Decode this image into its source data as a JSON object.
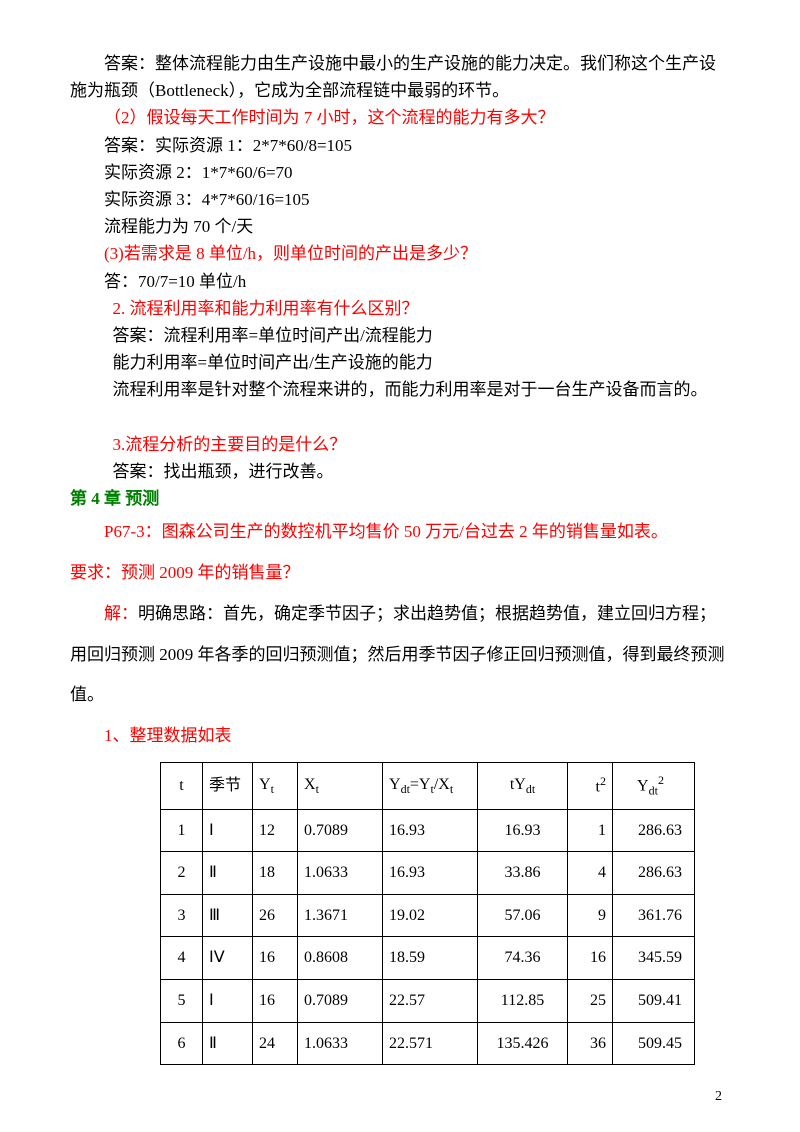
{
  "paragraphs": {
    "p1": "答案：整体流程能力由生产设施中最小的生产设施的能力决定。我们称这个生产设施为瓶颈（Bottleneck），它成为全部流程链中最弱的环节。",
    "p2": "（2）假设每天工作时间为 7 小时，这个流程的能力有多大？",
    "p3": "答案：实际资源 1：2*7*60/8=105",
    "p4": "实际资源 2：1*7*60/6=70",
    "p5": "实际资源 3：4*7*60/16=105",
    "p6": "流程能力为 70 个/天",
    "p7": "(3)若需求是 8 单位/h，则单位时间的产出是多少？",
    "p8": "答：70/7=10 单位/h",
    "p9": "2. 流程利用率和能力利用率有什么区别？",
    "p10": "答案：流程利用率=单位时间产出/流程能力",
    "p11": "能力利用率=单位时间产出/生产设施的能力",
    "p12": "流程利用率是针对整个流程来讲的，而能力利用率是对于一台生产设备而言的。",
    "p13": "3.流程分析的主要目的是什么？",
    "p14": "答案：找出瓶颈，进行改善。",
    "chapter": "第 4 章 预测",
    "p15": "P67-3：图森公司生产的数控机平均售价 50 万元/台过去 2 年的销售量如表。",
    "p16": "要求：预测 2009 年的销售量？",
    "p17a": "解：",
    "p17b": "明确思路：首先，确定季节因子；求出趋势值；根据趋势值，建立回归方程；用回归预测 2009 年各季的回归预测值；然后用季节因子修正回归预测值，得到最终预测值。",
    "p18": "1、整理数据如表"
  },
  "table": {
    "headers": {
      "t": "t",
      "season": "季节",
      "yt_label": "Y",
      "yt_sub": "t",
      "xt_label": "X",
      "xt_sub": "t",
      "ydt_label": "Y",
      "ydt_sub": "dt",
      "ydt_mid": "=Y",
      "ydt_sub2": "t",
      "ydt_slash": "/X",
      "ydt_sub3": "t",
      "tydt_label": "tY",
      "tydt_sub": "dt",
      "t2_label": "t",
      "t2_sup": "2",
      "ydt2_label": "Y",
      "ydt2_sub": "dt",
      "ydt2_sup": "2"
    },
    "rows": [
      {
        "t": "1",
        "season": "Ⅰ",
        "yt": "12",
        "xt": "0.7089",
        "ydt": "16.93",
        "tydt": "16.93",
        "t2": "1",
        "ydt2": "286.63"
      },
      {
        "t": "2",
        "season": "Ⅱ",
        "yt": "18",
        "xt": "1.0633",
        "ydt": "16.93",
        "tydt": "33.86",
        "t2": "4",
        "ydt2": "286.63"
      },
      {
        "t": "3",
        "season": "Ⅲ",
        "yt": "26",
        "xt": "1.3671",
        "ydt": "19.02",
        "tydt": "57.06",
        "t2": "9",
        "ydt2": "361.76"
      },
      {
        "t": "4",
        "season": "ⅠⅤ",
        "yt": "16",
        "xt": "0.8608",
        "ydt": "18.59",
        "tydt": "74.36",
        "t2": "16",
        "ydt2": "345.59"
      },
      {
        "t": "5",
        "season": "Ⅰ",
        "yt": "16",
        "xt": "0.7089",
        "ydt": "22.57",
        "tydt": "112.85",
        "t2": "25",
        "ydt2": "509.41"
      },
      {
        "t": "6",
        "season": "Ⅱ",
        "yt": "24",
        "xt": "1.0633",
        "ydt": "22.571",
        "tydt": "135.426",
        "t2": "36",
        "ydt2": "509.45"
      }
    ]
  },
  "page_number": "2"
}
